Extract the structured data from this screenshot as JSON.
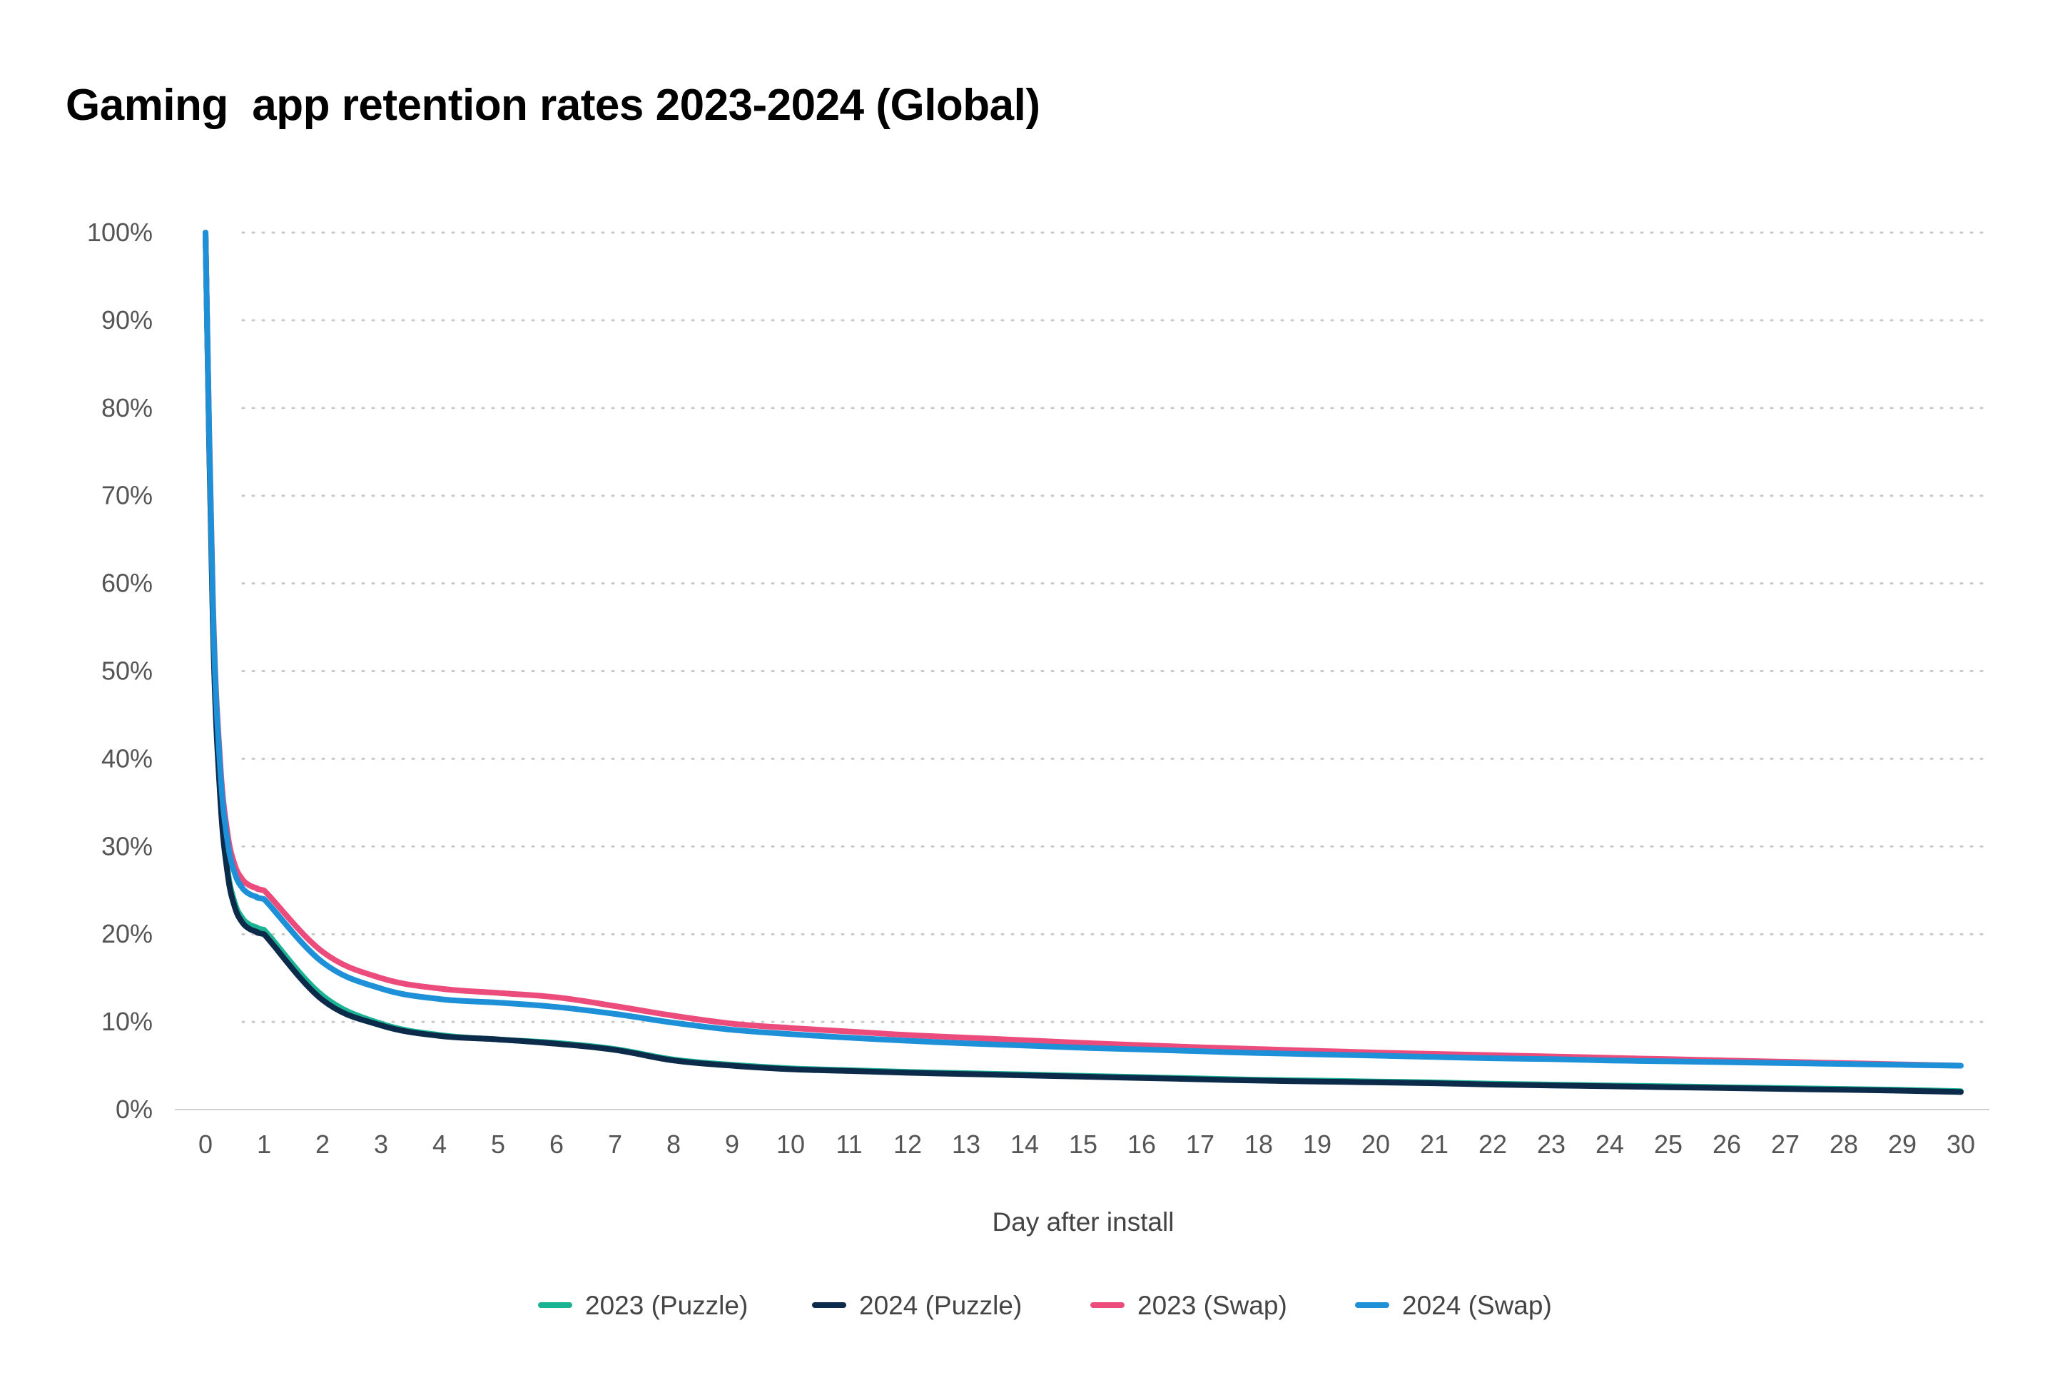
{
  "chart_data": {
    "type": "line",
    "title": "Gaming  app retention rates 2023-2024 (Global)",
    "xlabel": "Day after install",
    "ylabel": "",
    "x": [
      0,
      1,
      2,
      3,
      4,
      5,
      6,
      7,
      8,
      9,
      10,
      11,
      12,
      13,
      14,
      15,
      16,
      17,
      18,
      19,
      20,
      21,
      22,
      23,
      24,
      25,
      26,
      27,
      28,
      29,
      30
    ],
    "x_tick_labels": [
      "0",
      "1",
      "2",
      "3",
      "4",
      "5",
      "6",
      "7",
      "8",
      "9",
      "10",
      "11",
      "12",
      "13",
      "14",
      "15",
      "16",
      "17",
      "18",
      "19",
      "20",
      "21",
      "22",
      "23",
      "24",
      "25",
      "26",
      "27",
      "28",
      "29",
      "30"
    ],
    "ylim": [
      0,
      100
    ],
    "y_ticks": [
      0,
      10,
      20,
      30,
      40,
      50,
      60,
      70,
      80,
      90,
      100
    ],
    "y_tick_labels": [
      "0%",
      "10%",
      "20%",
      "30%",
      "40%",
      "50%",
      "60%",
      "70%",
      "80%",
      "90%",
      "100%"
    ],
    "grid": "horizontal dotted",
    "legend_position": "bottom-center",
    "series": [
      {
        "name": "2023 (Puzzle)",
        "color": "#1ab394",
        "values": [
          100,
          20.5,
          13,
          9.8,
          8.5,
          8,
          7.6,
          6.9,
          5.7,
          5.1,
          4.7,
          4.5,
          4.3,
          4.15,
          4.0,
          3.85,
          3.7,
          3.55,
          3.4,
          3.3,
          3.2,
          3.1,
          2.95,
          2.85,
          2.75,
          2.65,
          2.55,
          2.45,
          2.35,
          2.25,
          2.1
        ]
      },
      {
        "name": "2024 (Puzzle)",
        "color": "#0c2a4a",
        "values": [
          100,
          20,
          12.5,
          9.6,
          8.4,
          8,
          7.5,
          6.8,
          5.6,
          5.0,
          4.6,
          4.4,
          4.2,
          4.05,
          3.9,
          3.75,
          3.6,
          3.45,
          3.3,
          3.2,
          3.1,
          3.0,
          2.85,
          2.75,
          2.65,
          2.55,
          2.45,
          2.35,
          2.25,
          2.15,
          2.0
        ]
      },
      {
        "name": "2023 (Swap)",
        "color": "#ec4c7c",
        "values": [
          100,
          25,
          18,
          15,
          13.8,
          13.3,
          12.8,
          11.8,
          10.7,
          9.8,
          9.3,
          8.9,
          8.5,
          8.2,
          7.9,
          7.6,
          7.35,
          7.1,
          6.9,
          6.7,
          6.5,
          6.35,
          6.2,
          6.05,
          5.9,
          5.75,
          5.6,
          5.45,
          5.3,
          5.15,
          5.0
        ]
      },
      {
        "name": "2024 (Swap)",
        "color": "#1e90d8",
        "values": [
          100,
          24,
          16.8,
          13.8,
          12.6,
          12.2,
          11.7,
          10.9,
          9.9,
          9.1,
          8.6,
          8.2,
          7.85,
          7.55,
          7.3,
          7.05,
          6.85,
          6.65,
          6.45,
          6.3,
          6.15,
          6.0,
          5.85,
          5.75,
          5.6,
          5.5,
          5.4,
          5.3,
          5.2,
          5.1,
          5.0
        ]
      }
    ]
  }
}
